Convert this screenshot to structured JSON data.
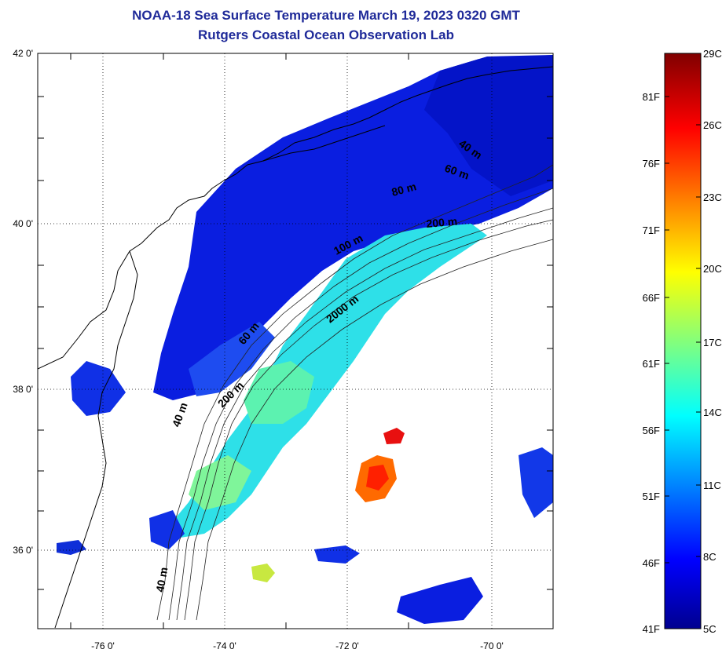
{
  "title_line1": "NOAA-18 Sea Surface Temperature March 19, 2023 0320 GMT",
  "title_line2": "Rutgers Coastal Ocean Observation Lab",
  "lat_ticks": [
    "42 0'",
    "40 0'",
    "38 0'",
    "36 0'"
  ],
  "lon_ticks": [
    "-76 0'",
    "-74 0'",
    "-72 0'",
    "-70 0'"
  ],
  "contour_labels": [
    "40 m",
    "60 m",
    "80 m",
    "200 m",
    "100 m",
    "2000 m",
    "60 m",
    "200 m",
    "40 m",
    "40 m"
  ],
  "colorbar_f": [
    "81F",
    "76F",
    "71F",
    "66F",
    "61F",
    "56F",
    "51F",
    "46F",
    "41F"
  ],
  "colorbar_c": [
    "29C",
    "26C",
    "23C",
    "20C",
    "17C",
    "14C",
    "11C",
    "8C",
    "5C"
  ],
  "colormap": [
    "#00008f",
    "#0000ff",
    "#0080ff",
    "#00ffff",
    "#80ff80",
    "#ffff00",
    "#ff8000",
    "#ff0000",
    "#800000"
  ]
}
